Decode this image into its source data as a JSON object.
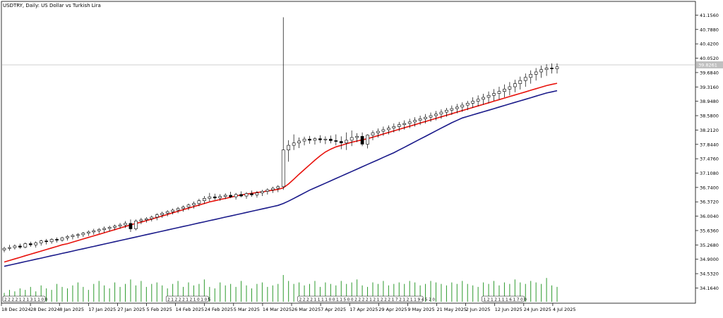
{
  "chart_data": {
    "type": "candlestick",
    "title": "USDTRY, Daily:  US Dollar vs Turkish Lira",
    "symbol": "USDTRY",
    "timeframe": "Daily",
    "description": "US Dollar vs Turkish Lira",
    "current_price_label": "39.8261",
    "y_ticks": [
      "41.1560",
      "40.7880",
      "40.4200",
      "40.0520",
      "39.6840",
      "39.3160",
      "38.9480",
      "38.5800",
      "38.2120",
      "37.8440",
      "37.4760",
      "37.1080",
      "36.7400",
      "36.3720",
      "36.0040",
      "35.6360",
      "35.2680",
      "34.9000",
      "34.5320",
      "34.1640"
    ],
    "x_ticks": [
      "18 Dec 2024",
      "28 Dec 2024",
      "8 Jan 2025",
      "17 Jan 2025",
      "27 Jan 2025",
      "5 Feb 2025",
      "14 Feb 2025",
      "24 Feb 2025",
      "5 Mar 2025",
      "14 Mar 2025",
      "26 Mar 2025",
      "7 Apr 2025",
      "17 Apr 2025",
      "29 Apr 2025",
      "9 May 2025",
      "21 May 2025",
      "2 Jun 2025",
      "12 Jun 2025",
      "24 Jun 2025",
      "4 Jul 2025"
    ],
    "ylim": [
      34.1,
      41.2
    ],
    "grid": false,
    "colors": {
      "background": "#ffffff",
      "candle": "#000000",
      "ma_fast": "#e8120c",
      "ma_slow": "#1a1a8a",
      "volume": "#2e9a2e",
      "crosshair": "#a0a0a0",
      "price_label_bg": "#c0c0c0"
    },
    "candles_ohlc": [
      [
        35.14,
        35.22,
        35.08,
        35.18
      ],
      [
        35.18,
        35.27,
        35.12,
        35.2
      ],
      [
        35.2,
        35.28,
        35.15,
        35.24
      ],
      [
        35.24,
        35.3,
        35.17,
        35.21
      ],
      [
        35.21,
        35.33,
        35.18,
        35.3
      ],
      [
        35.3,
        35.35,
        35.22,
        35.27
      ],
      [
        35.27,
        35.36,
        35.2,
        35.32
      ],
      [
        35.32,
        35.4,
        35.25,
        35.37
      ],
      [
        35.37,
        35.42,
        35.28,
        35.35
      ],
      [
        35.35,
        35.44,
        35.3,
        35.41
      ],
      [
        35.41,
        35.46,
        35.33,
        35.39
      ],
      [
        35.39,
        35.48,
        35.35,
        35.45
      ],
      [
        35.45,
        35.52,
        35.38,
        35.48
      ],
      [
        35.48,
        35.55,
        35.41,
        35.51
      ],
      [
        35.51,
        35.57,
        35.44,
        35.53
      ],
      [
        35.53,
        35.6,
        35.47,
        35.57
      ],
      [
        35.57,
        35.64,
        35.5,
        35.6
      ],
      [
        35.6,
        35.68,
        35.53,
        35.63
      ],
      [
        35.63,
        35.7,
        35.56,
        35.66
      ],
      [
        35.66,
        35.74,
        35.58,
        35.69
      ],
      [
        35.69,
        35.76,
        35.61,
        35.72
      ],
      [
        35.72,
        35.79,
        35.65,
        35.75
      ],
      [
        35.75,
        35.83,
        35.68,
        35.78
      ],
      [
        35.78,
        35.88,
        35.7,
        35.82
      ],
      [
        35.82,
        35.92,
        35.6,
        35.68
      ],
      [
        35.68,
        35.92,
        35.64,
        35.88
      ],
      [
        35.88,
        35.96,
        35.8,
        35.91
      ],
      [
        35.91,
        35.98,
        35.84,
        35.94
      ],
      [
        35.94,
        36.02,
        35.87,
        35.98
      ],
      [
        35.98,
        36.08,
        35.9,
        36.04
      ],
      [
        36.04,
        36.12,
        35.96,
        36.08
      ],
      [
        36.08,
        36.16,
        36.0,
        36.12
      ],
      [
        36.12,
        36.2,
        36.05,
        36.16
      ],
      [
        36.16,
        36.24,
        36.08,
        36.2
      ],
      [
        36.2,
        36.28,
        36.12,
        36.24
      ],
      [
        36.24,
        36.33,
        36.16,
        36.29
      ],
      [
        36.29,
        36.38,
        36.2,
        36.33
      ],
      [
        36.33,
        36.45,
        36.26,
        36.4
      ],
      [
        36.4,
        36.52,
        36.32,
        36.46
      ],
      [
        36.46,
        36.6,
        36.38,
        36.5
      ],
      [
        36.5,
        36.58,
        36.42,
        36.47
      ],
      [
        36.47,
        36.57,
        36.4,
        36.51
      ],
      [
        36.51,
        36.59,
        36.44,
        36.54
      ],
      [
        36.54,
        36.63,
        36.47,
        36.5
      ],
      [
        36.5,
        36.6,
        36.43,
        36.56
      ],
      [
        36.56,
        36.64,
        36.49,
        36.52
      ],
      [
        36.52,
        36.62,
        36.45,
        36.58
      ],
      [
        36.58,
        36.66,
        36.5,
        36.55
      ],
      [
        36.55,
        36.65,
        36.48,
        36.6
      ],
      [
        36.6,
        36.68,
        36.52,
        36.64
      ],
      [
        36.64,
        36.72,
        36.56,
        36.68
      ],
      [
        36.68,
        36.76,
        36.6,
        36.72
      ],
      [
        36.72,
        36.8,
        36.62,
        36.76
      ],
      [
        36.76,
        41.1,
        36.68,
        37.7
      ],
      [
        37.7,
        37.95,
        37.4,
        37.82
      ],
      [
        37.82,
        38.1,
        37.7,
        37.88
      ],
      [
        37.88,
        38.02,
        37.75,
        37.93
      ],
      [
        37.93,
        38.04,
        37.82,
        37.98
      ],
      [
        37.98,
        38.06,
        37.86,
        37.95
      ],
      [
        37.95,
        38.03,
        37.84,
        37.99
      ],
      [
        37.99,
        38.08,
        37.88,
        37.96
      ],
      [
        37.96,
        38.05,
        37.85,
        37.98
      ],
      [
        37.98,
        38.07,
        37.87,
        37.94
      ],
      [
        37.94,
        38.1,
        37.82,
        37.92
      ],
      [
        37.92,
        38.05,
        37.72,
        37.88
      ],
      [
        37.88,
        38.15,
        37.7,
        37.95
      ],
      [
        37.95,
        38.2,
        37.8,
        38.02
      ],
      [
        38.02,
        38.13,
        37.9,
        38.05
      ],
      [
        38.05,
        38.15,
        37.8,
        37.85
      ],
      [
        37.85,
        38.1,
        37.74,
        38.08
      ],
      [
        38.08,
        38.2,
        37.95,
        38.14
      ],
      [
        38.14,
        38.25,
        38.02,
        38.18
      ],
      [
        38.18,
        38.3,
        38.06,
        38.22
      ],
      [
        38.22,
        38.33,
        38.1,
        38.26
      ],
      [
        38.26,
        38.38,
        38.15,
        38.3
      ],
      [
        38.3,
        38.42,
        38.18,
        38.35
      ],
      [
        38.35,
        38.46,
        38.22,
        38.38
      ],
      [
        38.38,
        38.5,
        38.26,
        38.42
      ],
      [
        38.42,
        38.54,
        38.3,
        38.46
      ],
      [
        38.46,
        38.58,
        38.34,
        38.5
      ],
      [
        38.5,
        38.62,
        38.38,
        38.54
      ],
      [
        38.54,
        38.66,
        38.42,
        38.58
      ],
      [
        38.58,
        38.7,
        38.46,
        38.62
      ],
      [
        38.62,
        38.74,
        38.5,
        38.67
      ],
      [
        38.67,
        38.78,
        38.55,
        38.72
      ],
      [
        38.72,
        38.84,
        38.6,
        38.76
      ],
      [
        38.76,
        38.88,
        38.64,
        38.8
      ],
      [
        38.8,
        38.92,
        38.68,
        38.85
      ],
      [
        38.85,
        38.96,
        38.72,
        38.9
      ],
      [
        38.9,
        39.05,
        38.78,
        38.95
      ],
      [
        38.95,
        39.1,
        38.82,
        39.0
      ],
      [
        39.0,
        39.14,
        38.86,
        39.05
      ],
      [
        39.05,
        39.2,
        38.9,
        39.1
      ],
      [
        39.1,
        39.26,
        38.96,
        39.15
      ],
      [
        39.15,
        39.32,
        39.0,
        39.2
      ],
      [
        39.2,
        39.38,
        39.05,
        39.26
      ],
      [
        39.26,
        39.44,
        39.1,
        39.32
      ],
      [
        39.32,
        39.5,
        39.18,
        39.4
      ],
      [
        39.4,
        39.58,
        39.25,
        39.48
      ],
      [
        39.48,
        39.66,
        39.32,
        39.56
      ],
      [
        39.56,
        39.74,
        39.4,
        39.64
      ],
      [
        39.64,
        39.8,
        39.48,
        39.7
      ],
      [
        39.7,
        39.86,
        39.55,
        39.76
      ],
      [
        39.76,
        39.9,
        39.6,
        39.8
      ],
      [
        39.8,
        39.92,
        39.66,
        39.78
      ],
      [
        39.78,
        39.92,
        39.66,
        39.83
      ]
    ],
    "ma_fast": [
      34.83,
      34.87,
      34.91,
      34.95,
      34.99,
      35.03,
      35.07,
      35.11,
      35.15,
      35.19,
      35.23,
      35.27,
      35.3,
      35.34,
      35.38,
      35.42,
      35.46,
      35.5,
      35.54,
      35.58,
      35.62,
      35.66,
      35.7,
      35.74,
      35.78,
      35.82,
      35.85,
      35.89,
      35.93,
      35.97,
      36.01,
      36.05,
      36.09,
      36.13,
      36.17,
      36.21,
      36.25,
      36.29,
      36.33,
      36.37,
      36.4,
      36.43,
      36.46,
      36.49,
      36.52,
      36.55,
      36.57,
      36.59,
      36.61,
      36.63,
      36.65,
      36.67,
      36.69,
      36.73,
      36.83,
      36.95,
      37.08,
      37.2,
      37.32,
      37.44,
      37.55,
      37.65,
      37.72,
      37.78,
      37.82,
      37.86,
      37.9,
      37.93,
      37.96,
      37.99,
      38.03,
      38.07,
      38.11,
      38.15,
      38.19,
      38.23,
      38.27,
      38.31,
      38.35,
      38.39,
      38.43,
      38.47,
      38.51,
      38.55,
      38.59,
      38.63,
      38.67,
      38.71,
      38.75,
      38.79,
      38.83,
      38.87,
      38.91,
      38.95,
      38.99,
      39.03,
      39.07,
      39.11,
      39.15,
      39.19,
      39.23,
      39.27,
      39.31,
      39.35,
      39.38,
      39.41
    ],
    "ma_slow": [
      34.72,
      34.75,
      34.78,
      34.81,
      34.84,
      34.87,
      34.9,
      34.93,
      34.96,
      34.99,
      35.02,
      35.05,
      35.08,
      35.11,
      35.14,
      35.17,
      35.2,
      35.23,
      35.26,
      35.29,
      35.32,
      35.35,
      35.38,
      35.41,
      35.44,
      35.47,
      35.5,
      35.53,
      35.56,
      35.59,
      35.62,
      35.65,
      35.68,
      35.71,
      35.74,
      35.77,
      35.8,
      35.83,
      35.86,
      35.89,
      35.92,
      35.95,
      35.98,
      36.01,
      36.04,
      36.07,
      36.1,
      36.13,
      36.16,
      36.19,
      36.22,
      36.25,
      36.28,
      36.33,
      36.39,
      36.46,
      36.53,
      36.6,
      36.67,
      36.73,
      36.79,
      36.85,
      36.91,
      36.97,
      37.03,
      37.09,
      37.15,
      37.21,
      37.27,
      37.33,
      37.39,
      37.45,
      37.51,
      37.57,
      37.63,
      37.7,
      37.77,
      37.84,
      37.91,
      37.98,
      38.05,
      38.12,
      38.19,
      38.26,
      38.33,
      38.4,
      38.46,
      38.52,
      38.56,
      38.6,
      38.64,
      38.68,
      38.72,
      38.76,
      38.8,
      38.84,
      38.88,
      38.92,
      38.96,
      39.0,
      39.04,
      39.08,
      39.12,
      39.16,
      39.19,
      39.22
    ],
    "volume": [
      6,
      8,
      7,
      9,
      8,
      10,
      7,
      11,
      9,
      8,
      12,
      10,
      9,
      11,
      13,
      10,
      8,
      12,
      14,
      11,
      9,
      13,
      10,
      12,
      15,
      11,
      14,
      10,
      12,
      13,
      11,
      9,
      12,
      14,
      10,
      13,
      11,
      12,
      15,
      10,
      9,
      13,
      11,
      12,
      10,
      14,
      11,
      9,
      12,
      13,
      10,
      11,
      12,
      18,
      14,
      12,
      13,
      11,
      12,
      14,
      10,
      13,
      12,
      11,
      14,
      12,
      13,
      15,
      11,
      10,
      13,
      12,
      14,
      11,
      12,
      13,
      12,
      14,
      13,
      11,
      12,
      14,
      13,
      12,
      11,
      13,
      12,
      14,
      12,
      11,
      10,
      13,
      12,
      14,
      11,
      13,
      12,
      15,
      13,
      12,
      14,
      13,
      12,
      16,
      11,
      10
    ],
    "volume_tags": [
      {
        "text": "2 2 2 2 1 2 1 3 1 1 0 0",
        "at": 0
      },
      {
        "text": "2 1 2 2 2 1 2 1 0 1 0 5",
        "at": 31
      },
      {
        "text": "2 2 2 2 1 1 1 1 0 0 1 1 5 0 0 2 2 2 2 1 2 1 2 2 2 1 7 2 1 2 1 1 9 4 5 2 0",
        "at": 56
      },
      {
        "text": "1 2 1 2 1 1 1 6 1 7 0 0",
        "at": 91
      }
    ]
  }
}
